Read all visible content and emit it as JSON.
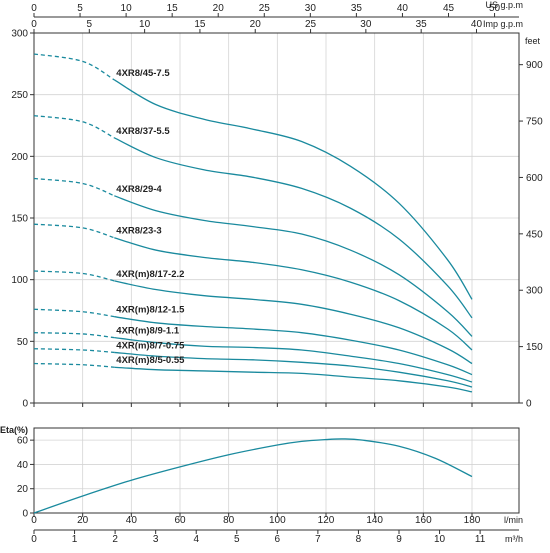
{
  "colors": {
    "curve": "#1a8a9e",
    "grid": "#d4d4d4",
    "axis": "#333333"
  },
  "chart_data": [
    {
      "type": "line",
      "panel": "head",
      "xlabel_top_outer": "US g.p.m",
      "xlabel_top_inner": "Imp g.p.m",
      "ylabel_right": "feet",
      "xlim": [
        0,
        185
      ],
      "ylim": [
        0,
        300
      ],
      "x_ticks_lmin": [
        0,
        20,
        40,
        60,
        80,
        100,
        120,
        140,
        160,
        180
      ],
      "y_ticks_left": [
        0,
        50,
        100,
        150,
        200,
        250,
        300
      ],
      "y_ticks_right": [
        0,
        150,
        300,
        450,
        600,
        750,
        900
      ],
      "x_ticks_us": [
        0,
        5,
        10,
        15,
        20,
        25,
        30,
        35,
        40,
        45,
        50
      ],
      "x_ticks_imp": [
        0,
        5,
        10,
        15,
        20,
        25,
        30,
        35,
        40
      ],
      "dashed_until_x": 33,
      "series": [
        {
          "name": "4XR8/45-7.5",
          "x": [
            0,
            20,
            33,
            50,
            70,
            90,
            110,
            130,
            150,
            170,
            180
          ],
          "values": [
            283,
            277,
            262,
            242,
            230,
            222,
            212,
            192,
            162,
            116,
            84
          ]
        },
        {
          "name": "4XR8/37-5.5",
          "x": [
            0,
            20,
            33,
            50,
            70,
            90,
            110,
            130,
            150,
            170,
            180
          ],
          "values": [
            233,
            228,
            215,
            199,
            189,
            183,
            174,
            158,
            133,
            95,
            69
          ]
        },
        {
          "name": "4XR8/29-4",
          "x": [
            0,
            20,
            33,
            50,
            70,
            90,
            110,
            130,
            150,
            170,
            180
          ],
          "values": [
            182,
            178,
            168,
            156,
            148,
            143,
            137,
            124,
            104,
            74,
            54
          ]
        },
        {
          "name": "4XR8/23-3",
          "x": [
            0,
            20,
            33,
            50,
            70,
            90,
            110,
            130,
            150,
            170,
            180
          ],
          "values": [
            145,
            142,
            134,
            124,
            118,
            114,
            108,
            98,
            83,
            60,
            43
          ]
        },
        {
          "name": "4XR(m)8/17-2.2",
          "x": [
            0,
            20,
            33,
            50,
            70,
            90,
            110,
            130,
            150,
            170,
            180
          ],
          "values": [
            107,
            105,
            99,
            92,
            87,
            84,
            80,
            72,
            61,
            44,
            32
          ]
        },
        {
          "name": "4XR(m)8/12-1.5",
          "x": [
            0,
            20,
            33,
            50,
            70,
            90,
            110,
            130,
            150,
            170,
            180
          ],
          "values": [
            76,
            74,
            70,
            65,
            62,
            60,
            57,
            51,
            43,
            31,
            23
          ]
        },
        {
          "name": "4XR(m)8/9-1.1",
          "x": [
            0,
            20,
            33,
            50,
            70,
            90,
            110,
            130,
            150,
            170,
            180
          ],
          "values": [
            57,
            56,
            53,
            49,
            46,
            45,
            43,
            38,
            32,
            23,
            17
          ]
        },
        {
          "name": "4XR(m)8/7-0.75",
          "x": [
            0,
            20,
            33,
            50,
            70,
            90,
            110,
            130,
            150,
            170,
            180
          ],
          "values": [
            44,
            43,
            41,
            38,
            36,
            35,
            33,
            30,
            25,
            18,
            13
          ]
        },
        {
          "name": "4XR(m)8/5-0.55",
          "x": [
            0,
            20,
            33,
            50,
            70,
            90,
            110,
            130,
            150,
            170,
            180
          ],
          "values": [
            32,
            31,
            29,
            27,
            26,
            25,
            24,
            21,
            18,
            13,
            9
          ]
        }
      ]
    },
    {
      "type": "line",
      "panel": "efficiency",
      "ylabel": "Eta(%)",
      "xlabel": "l/min",
      "xlabel_bottom": "m³/h",
      "xlim": [
        0,
        185
      ],
      "ylim": [
        0,
        70
      ],
      "y_ticks": [
        0,
        20,
        40,
        60
      ],
      "x_ticks_lmin": [
        0,
        20,
        40,
        60,
        80,
        100,
        120,
        140,
        160,
        180
      ],
      "x_ticks_m3h": [
        0,
        1,
        2,
        3,
        4,
        5,
        6,
        7,
        8,
        9,
        10,
        11
      ],
      "series": [
        {
          "x": [
            0,
            20,
            40,
            60,
            80,
            100,
            110,
            120,
            127,
            135,
            150,
            165,
            180
          ],
          "values": [
            0,
            14,
            27,
            38,
            48,
            56,
            59,
            60.5,
            61,
            60,
            55,
            45,
            30
          ]
        }
      ]
    }
  ]
}
